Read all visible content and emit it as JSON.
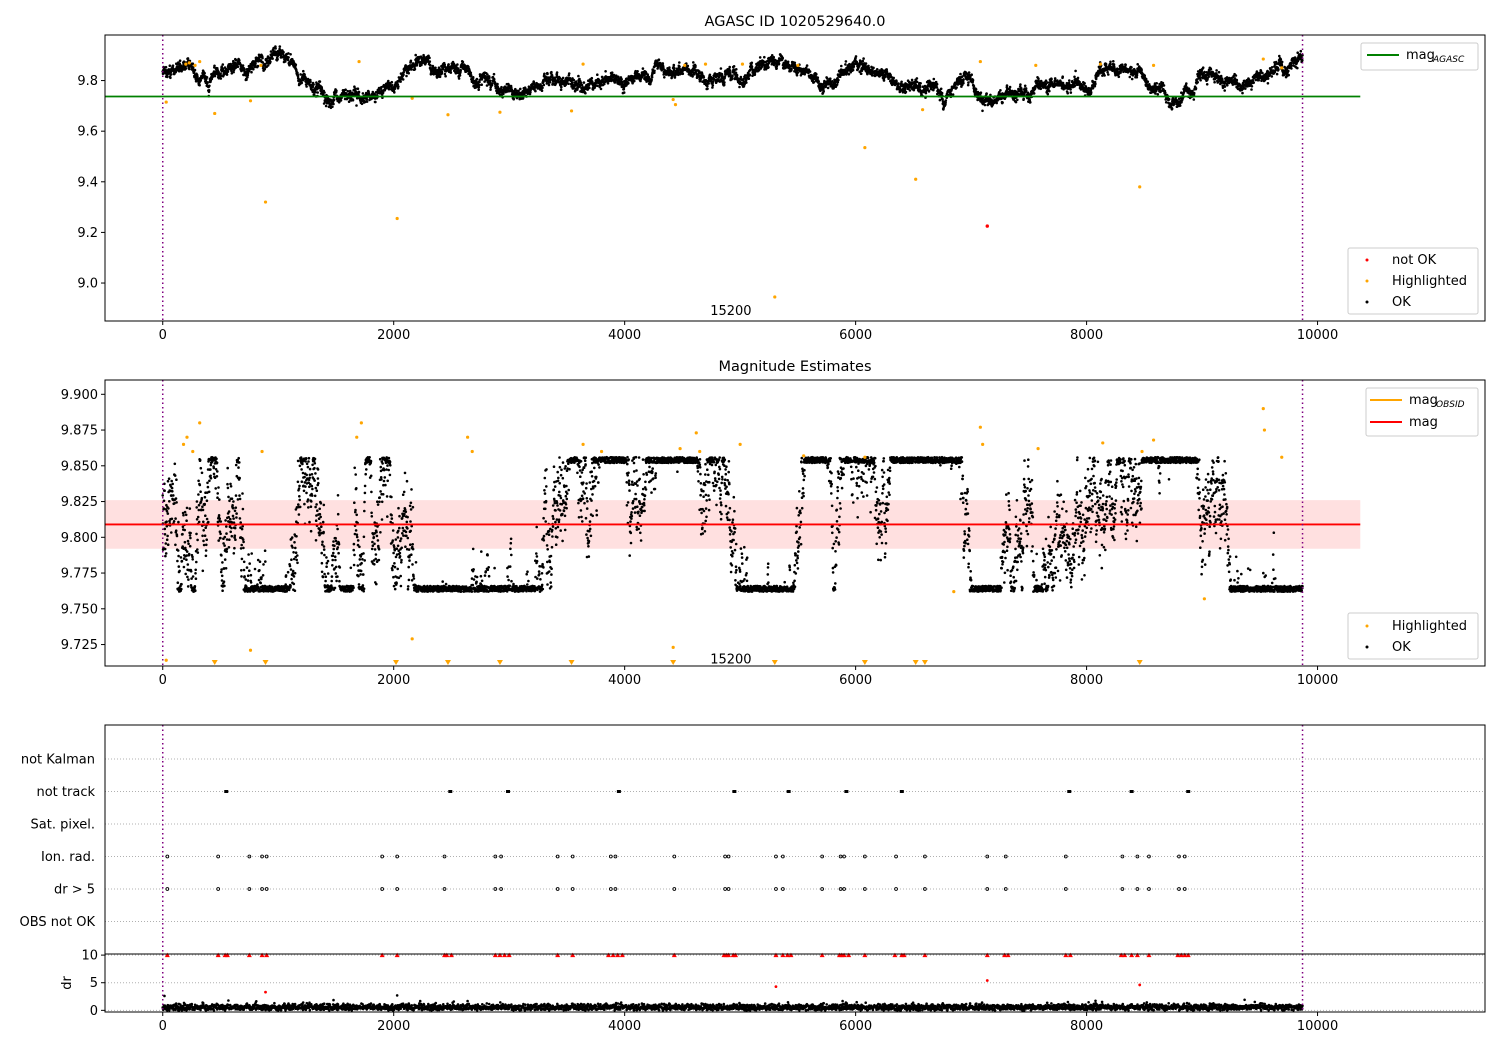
{
  "chart_data": [
    {
      "type": "scatter",
      "title": "AGASC ID 1020529640.0",
      "xlim": [
        -500,
        11450
      ],
      "ylim": [
        8.85,
        9.98
      ],
      "xticks": [
        0,
        2000,
        4000,
        6000,
        8000,
        10000
      ],
      "xtick_labels": [
        "0",
        "2000",
        "4000",
        "6000",
        "8000",
        "10000"
      ],
      "yticks": [
        9.0,
        9.2,
        9.4,
        9.6,
        9.8
      ],
      "ytick_labels": [
        "9.0",
        "9.2",
        "9.4",
        "9.6",
        "9.8"
      ],
      "vlines": [
        0,
        9870
      ],
      "annotation": {
        "text": "15200",
        "x": 4920,
        "y": 8.89
      },
      "hline": {
        "label": "mag",
        "subscript": "AGASC",
        "y": 9.737,
        "xmax": 10370,
        "color": "#008000"
      },
      "series": [
        {
          "name": "OK",
          "color": "#000000",
          "base": 9.813,
          "noise": 0.009
        },
        {
          "name": "Highlighted",
          "color": "#ffa500"
        },
        {
          "name": "not OK",
          "color": "#ff0000"
        }
      ],
      "outliers": [
        [
          30,
          9.715
        ],
        [
          200,
          9.865
        ],
        [
          230,
          9.87
        ],
        [
          280,
          9.86
        ],
        [
          320,
          9.875
        ],
        [
          450,
          9.67
        ],
        [
          760,
          9.72
        ],
        [
          850,
          9.86
        ],
        [
          890,
          9.32
        ],
        [
          1700,
          9.875
        ],
        [
          2030,
          9.255
        ],
        [
          2160,
          9.73
        ],
        [
          2470,
          9.665
        ],
        [
          2920,
          9.675
        ],
        [
          3540,
          9.68
        ],
        [
          3640,
          9.865
        ],
        [
          4420,
          9.725
        ],
        [
          4440,
          9.705
        ],
        [
          4520,
          9.86
        ],
        [
          4700,
          9.865
        ],
        [
          5020,
          9.865
        ],
        [
          5300,
          8.945
        ],
        [
          5500,
          9.86
        ],
        [
          6080,
          9.535
        ],
        [
          6520,
          9.41
        ],
        [
          6580,
          9.685
        ],
        [
          7080,
          9.875
        ],
        [
          7560,
          9.86
        ],
        [
          8120,
          9.865
        ],
        [
          8460,
          9.38
        ],
        [
          8580,
          9.86
        ],
        [
          9530,
          9.885
        ],
        [
          9690,
          9.85
        ]
      ],
      "notok": [
        [
          7140,
          9.225
        ]
      ],
      "legend": {
        "placement": "lower-right",
        "entries": [
          "not OK",
          "Highlighted",
          "OK"
        ]
      }
    },
    {
      "type": "scatter",
      "title": "Magnitude Estimates",
      "xlim": [
        -500,
        11450
      ],
      "ylim": [
        9.71,
        9.91
      ],
      "xticks": [
        0,
        2000,
        4000,
        6000,
        8000,
        10000
      ],
      "xtick_labels": [
        "0",
        "2000",
        "4000",
        "6000",
        "8000",
        "10000"
      ],
      "yticks": [
        9.725,
        9.75,
        9.775,
        9.8,
        9.825,
        9.85,
        9.875,
        9.9
      ],
      "ytick_labels": [
        "9.725",
        "9.750",
        "9.775",
        "9.800",
        "9.825",
        "9.850",
        "9.875",
        "9.900"
      ],
      "vlines": [
        0,
        9870
      ],
      "annotation": {
        "text": "15200",
        "x": 4920,
        "y": 9.7145
      },
      "mag_line": {
        "label": "mag",
        "y": 9.809,
        "band": [
          9.792,
          9.826
        ],
        "xmax": 10370,
        "color": "#ff0000"
      },
      "mag_obsid_label": "mag",
      "mag_obsid_subscript": "OBSID",
      "mag_obsid_color": "#ffa500",
      "series": [
        {
          "name": "OK",
          "color": "#000000",
          "base": 9.808,
          "noise": 0.012
        },
        {
          "name": "Highlighted",
          "color": "#ffa500"
        }
      ],
      "highlighted": [
        [
          30,
          9.714
        ],
        [
          180,
          9.865
        ],
        [
          210,
          9.87
        ],
        [
          260,
          9.86
        ],
        [
          320,
          9.88
        ],
        [
          760,
          9.721
        ],
        [
          860,
          9.86
        ],
        [
          1680,
          9.87
        ],
        [
          1720,
          9.88
        ],
        [
          2160,
          9.729
        ],
        [
          2640,
          9.87
        ],
        [
          2680,
          9.86
        ],
        [
          3640,
          9.865
        ],
        [
          3800,
          9.86
        ],
        [
          4420,
          9.723
        ],
        [
          4480,
          9.862
        ],
        [
          4620,
          9.873
        ],
        [
          4650,
          9.86
        ],
        [
          5000,
          9.865
        ],
        [
          5550,
          9.857
        ],
        [
          6080,
          9.856
        ],
        [
          6850,
          9.762
        ],
        [
          7080,
          9.877
        ],
        [
          7100,
          9.865
        ],
        [
          7580,
          9.862
        ],
        [
          8140,
          9.866
        ],
        [
          8480,
          9.86
        ],
        [
          8580,
          9.868
        ],
        [
          9020,
          9.757
        ],
        [
          9530,
          9.89
        ],
        [
          9540,
          9.875
        ],
        [
          9690,
          9.856
        ]
      ],
      "triangles": [
        450,
        890,
        2020,
        2470,
        2920,
        3540,
        4420,
        5300,
        6080,
        6520,
        6600,
        8460
      ],
      "legend": {
        "placement": "lower-right",
        "entries": [
          "Highlighted",
          "OK"
        ]
      }
    },
    {
      "type": "scatter",
      "title": "",
      "xlim": [
        -500,
        11450
      ],
      "categories": [
        "not Kalman",
        "not track",
        "Sat. pixel.",
        "Ion. rad.",
        "dr > 5",
        "OBS not OK"
      ],
      "vlines": [
        0,
        9870
      ],
      "flags": {
        "not track": [
          550,
          2490,
          2990,
          3950,
          4950,
          5420,
          5920,
          6400,
          7850,
          8390,
          8880
        ],
        "Ion. rad.": [
          40,
          480,
          750,
          860,
          900,
          1900,
          2030,
          2440,
          2880,
          2930,
          3420,
          3550,
          3880,
          3920,
          4430,
          4870,
          4900,
          5310,
          5370,
          5710,
          5870,
          5900,
          6080,
          6350,
          6600,
          7140,
          7300,
          7820,
          8310,
          8440,
          8540,
          8800,
          8850
        ],
        "dr > 5": [
          40,
          480,
          750,
          860,
          900,
          1900,
          2030,
          2440,
          2880,
          2930,
          3420,
          3550,
          3880,
          3920,
          4430,
          4870,
          4900,
          5310,
          5370,
          5710,
          5870,
          5900,
          6080,
          6350,
          6600,
          7140,
          7300,
          7820,
          8310,
          8440,
          8540,
          8800,
          8850
        ]
      }
    },
    {
      "type": "scatter",
      "title": "",
      "xlim": [
        -500,
        11450
      ],
      "ylim": [
        -0.3,
        10.2
      ],
      "ylabel": "dr",
      "xticks": [
        0,
        2000,
        4000,
        6000,
        8000,
        10000
      ],
      "xtick_labels": [
        "0",
        "2000",
        "4000",
        "6000",
        "8000",
        "10000"
      ],
      "yticks": [
        0,
        5,
        10
      ],
      "ytick_labels": [
        "0",
        "5",
        "10"
      ],
      "vlines": [
        0,
        9870
      ],
      "base_noise": {
        "mean": 0.55,
        "sd": 0.3
      },
      "capped_red": [
        40,
        480,
        540,
        560,
        750,
        860,
        900,
        1900,
        2030,
        2440,
        2460,
        2500,
        2880,
        2920,
        2960,
        3000,
        3420,
        3550,
        3860,
        3900,
        3940,
        3980,
        4430,
        4860,
        4880,
        4900,
        4940,
        4960,
        5310,
        5370,
        5410,
        5440,
        5710,
        5860,
        5880,
        5900,
        5940,
        6080,
        6340,
        6400,
        6420,
        6600,
        7140,
        7290,
        7320,
        7820,
        7860,
        8300,
        8330,
        8390,
        8440,
        8540,
        8790,
        8820,
        8850,
        8880
      ],
      "red_points": [
        [
          890,
          3.3
        ],
        [
          5310,
          4.3
        ],
        [
          7140,
          5.4
        ],
        [
          8460,
          4.6
        ]
      ],
      "black_points": [
        [
          2030,
          2.7
        ],
        [
          15,
          2.6
        ]
      ]
    }
  ]
}
